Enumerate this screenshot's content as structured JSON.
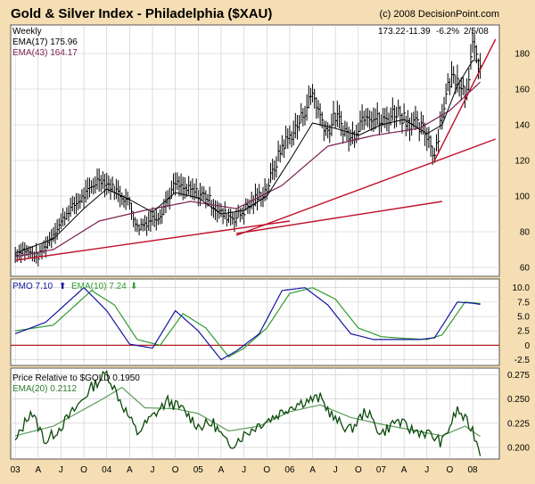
{
  "header": {
    "title": "Gold & Silver Index - Philadelphia ($XAU)",
    "copyright": "(c) 2008 DecisionPoint.com"
  },
  "panel_price": {
    "period": "Weekly",
    "last_close": "173.22",
    "change": "-11.39",
    "change_pct": "-6.2%",
    "date": "2/5/08",
    "ema17_label": "EMA(17) 175.96",
    "ema43_label": "EMA(43) 164.17"
  },
  "panel_pmo": {
    "pmo_label": "PMO  7.10",
    "pmo_arrow": "⬆",
    "ema_label": "EMA(10)  7.24",
    "ema_arrow": "⬇"
  },
  "panel_rel": {
    "rel_label": "Price Relative to $GOLD  0.1950",
    "ema_label": "EMA(20) 0.2112"
  },
  "colors": {
    "background": "#f5deb3",
    "plot": "#ffffff",
    "grid": "#c8c8c8",
    "price": "#000000",
    "ema17": "#000000",
    "ema43": "#7a1f4f",
    "trendline": "#c0102a",
    "pmo": "#1414a0",
    "pmo_signal": "#2f9c2f",
    "zero_line": "#b41e1e",
    "relative": "#0a4a0a",
    "relative_ema": "#5a9a5a"
  },
  "chart_data": [
    {
      "type": "line",
      "panel": "price",
      "chart_style": "high-low bars, weekly",
      "title": "Gold & Silver Index - Philadelphia ($XAU)",
      "ylim": [
        55,
        196
      ],
      "yticks": [
        60,
        80,
        100,
        120,
        140,
        160,
        180
      ],
      "grid": true,
      "x_tick_labels": [
        "03",
        "A",
        "J",
        "O",
        "04",
        "A",
        "J",
        "O",
        "05",
        "A",
        "J",
        "O",
        "06",
        "A",
        "J",
        "O",
        "07",
        "A",
        "J",
        "O",
        "08"
      ],
      "series": [
        {
          "name": "XAU",
          "x": [
            "2003-01",
            "2003-02",
            "2003-04",
            "2003-06",
            "2003-08",
            "2003-10",
            "2003-12",
            "2004-02",
            "2004-04",
            "2004-05",
            "2004-06",
            "2004-08",
            "2004-10",
            "2004-11",
            "2004-12",
            "2005-02",
            "2005-04",
            "2005-06",
            "2005-08",
            "2005-10",
            "2005-12",
            "2006-02",
            "2006-04",
            "2006-05",
            "2006-06",
            "2006-07",
            "2006-09",
            "2006-11",
            "2007-01",
            "2007-03",
            "2007-05",
            "2007-07",
            "2007-08",
            "2007-09",
            "2007-10",
            "2007-11",
            "2007-12",
            "2008-01",
            "2008-02"
          ],
          "values": [
            67,
            70,
            66,
            79,
            92,
            100,
            110,
            104,
            96,
            82,
            85,
            90,
            107,
            104,
            103,
            100,
            90,
            88,
            96,
            104,
            128,
            139,
            158,
            145,
            136,
            145,
            132,
            148,
            141,
            148,
            141,
            135,
            124,
            147,
            165,
            168,
            158,
            182,
            173
          ]
        },
        {
          "name": "EMA(17)",
          "x": [
            "2003-01",
            "2003-06",
            "2003-10",
            "2004-01",
            "2004-04",
            "2004-07",
            "2004-10",
            "2005-01",
            "2005-04",
            "2005-07",
            "2005-10",
            "2006-01",
            "2006-04",
            "2006-07",
            "2006-10",
            "2007-01",
            "2007-04",
            "2007-07",
            "2007-09",
            "2007-11",
            "2008-01",
            "2008-02"
          ],
          "values": [
            68,
            76,
            93,
            104,
            98,
            91,
            102,
            99,
            90,
            92,
            100,
            120,
            141,
            138,
            134,
            140,
            143,
            135,
            140,
            162,
            176,
            176
          ]
        },
        {
          "name": "EMA(43)",
          "x": [
            "2003-01",
            "2003-06",
            "2003-12",
            "2004-06",
            "2004-12",
            "2005-06",
            "2005-12",
            "2006-06",
            "2006-12",
            "2007-06",
            "2007-10",
            "2008-02"
          ],
          "values": [
            66,
            70,
            86,
            92,
            97,
            93,
            106,
            128,
            134,
            138,
            148,
            164
          ]
        },
        {
          "name": "Trendline A",
          "x": [
            "2003-01",
            "2006-01"
          ],
          "values": [
            64,
            86
          ]
        },
        {
          "name": "Trendline B",
          "x": [
            "2005-06",
            "2007-09"
          ],
          "values": [
            79,
            97
          ]
        },
        {
          "name": "Trendline C",
          "x": [
            "2005-06",
            "2008-04"
          ],
          "values": [
            78,
            132
          ]
        },
        {
          "name": "Trendline D",
          "x": [
            "2007-08",
            "2008-04"
          ],
          "values": [
            120,
            188
          ]
        }
      ]
    },
    {
      "type": "line",
      "panel": "PMO",
      "ylim": [
        -3.5,
        11.5
      ],
      "yticks": [
        -2.5,
        0,
        2.5,
        5.0,
        7.5,
        10.0
      ],
      "grid": true,
      "series": [
        {
          "name": "PMO",
          "x": [
            "2003-01",
            "2003-05",
            "2003-10",
            "2004-01",
            "2004-04",
            "2004-07",
            "2004-10",
            "2005-01",
            "2005-04",
            "2005-06",
            "2005-09",
            "2005-12",
            "2006-03",
            "2006-06",
            "2006-09",
            "2006-12",
            "2007-03",
            "2007-06",
            "2007-08",
            "2007-11",
            "2008-01",
            "2008-02"
          ],
          "values": [
            2.0,
            4.0,
            10.0,
            6.0,
            0.2,
            -0.5,
            6.0,
            2.5,
            -2.5,
            -1.0,
            2.0,
            9.5,
            10.0,
            7.0,
            2.0,
            1.0,
            1.0,
            1.0,
            1.3,
            7.5,
            7.3,
            7.1
          ]
        },
        {
          "name": "EMA(10)",
          "x": [
            "2003-01",
            "2003-06",
            "2003-11",
            "2004-02",
            "2004-05",
            "2004-08",
            "2004-11",
            "2005-02",
            "2005-05",
            "2005-07",
            "2005-10",
            "2006-01",
            "2006-04",
            "2006-07",
            "2006-10",
            "2007-01",
            "2007-04",
            "2007-07",
            "2007-09",
            "2007-12",
            "2008-02"
          ],
          "values": [
            2.5,
            3.5,
            9.5,
            7.0,
            1.0,
            0.0,
            5.5,
            3.0,
            -2.0,
            -0.5,
            3.0,
            9.0,
            10.0,
            8.0,
            3.0,
            1.5,
            1.2,
            1.0,
            1.8,
            7.5,
            7.24
          ]
        }
      ]
    },
    {
      "type": "line",
      "panel": "Price Relative",
      "ylim": [
        0.188,
        0.282
      ],
      "yticks": [
        0.2,
        0.225,
        0.25,
        0.275
      ],
      "grid": true,
      "series": [
        {
          "name": "Price Relative to $GOLD",
          "x": [
            "2003-01",
            "2003-03",
            "2003-05",
            "2003-07",
            "2003-09",
            "2003-11",
            "2004-01",
            "2004-03",
            "2004-05",
            "2004-07",
            "2004-09",
            "2004-11",
            "2005-01",
            "2005-03",
            "2005-05",
            "2005-07",
            "2005-09",
            "2005-11",
            "2006-01",
            "2006-03",
            "2006-05",
            "2006-07",
            "2006-09",
            "2006-11",
            "2007-01",
            "2007-03",
            "2007-05",
            "2007-07",
            "2007-09",
            "2007-11",
            "2008-01",
            "2008-02"
          ],
          "values": [
            0.205,
            0.238,
            0.206,
            0.222,
            0.241,
            0.262,
            0.277,
            0.245,
            0.215,
            0.232,
            0.248,
            0.239,
            0.222,
            0.225,
            0.201,
            0.213,
            0.224,
            0.232,
            0.242,
            0.248,
            0.251,
            0.228,
            0.218,
            0.238,
            0.214,
            0.228,
            0.218,
            0.215,
            0.205,
            0.239,
            0.218,
            0.195
          ]
        },
        {
          "name": "EMA(20)",
          "x": [
            "2003-01",
            "2003-06",
            "2003-12",
            "2004-03",
            "2004-06",
            "2004-10",
            "2005-01",
            "2005-05",
            "2005-09",
            "2006-01",
            "2006-05",
            "2006-09",
            "2007-01",
            "2007-05",
            "2007-09",
            "2007-12",
            "2008-02"
          ],
          "values": [
            0.212,
            0.222,
            0.248,
            0.262,
            0.241,
            0.24,
            0.235,
            0.217,
            0.222,
            0.237,
            0.244,
            0.231,
            0.224,
            0.218,
            0.212,
            0.222,
            0.2112
          ]
        }
      ]
    }
  ]
}
